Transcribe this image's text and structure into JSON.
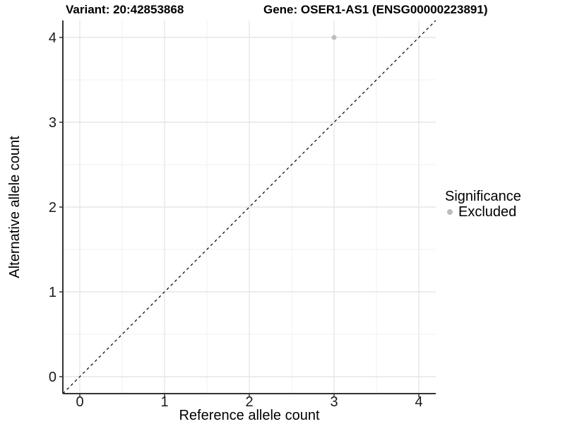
{
  "titles": {
    "variant": "Variant: 20:42853868",
    "gene": "Gene: OSER1-AS1 (ENSG00000223891)"
  },
  "legend": {
    "title": "Significance",
    "items": [
      {
        "label": "Excluded",
        "color": "#bdbdbd",
        "marker": "circle"
      }
    ],
    "position": "right"
  },
  "chart_data": {
    "type": "scatter",
    "xlabel": "Reference allele count",
    "ylabel": "Alternative allele count",
    "xlim": [
      -0.2,
      4.2
    ],
    "ylim": [
      -0.2,
      4.2
    ],
    "x_ticks": [
      0,
      1,
      2,
      3,
      4
    ],
    "y_ticks": [
      0,
      1,
      2,
      3,
      4
    ],
    "grid": true,
    "minor_grid": true,
    "series": [
      {
        "name": "Excluded",
        "color": "#bdbdbd",
        "points": [
          {
            "x": 3,
            "y": 4
          }
        ]
      }
    ],
    "reference_line": {
      "slope": 1,
      "intercept": 0,
      "style": "dashed",
      "color": "#000000"
    }
  },
  "colors": {
    "grid_major": "#e6e6e6",
    "grid_minor": "#f2f2f2",
    "axis_line": "#333333",
    "tick_mark": "#333333",
    "tick_label": "#1a1a1a",
    "text": "#000000",
    "background": "#ffffff"
  }
}
